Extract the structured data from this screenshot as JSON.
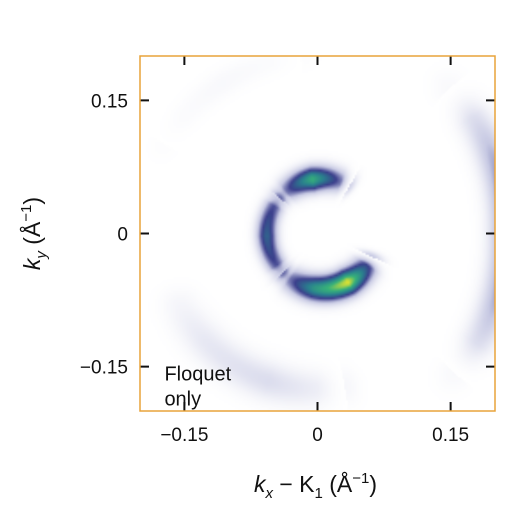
{
  "chart_data": {
    "type": "heatmap",
    "title": "",
    "xlabel": {
      "base": "k",
      "sub": "x",
      "rest": " − K",
      "sub2": "1",
      "unit": " (Å",
      "exp": "−1",
      "close": ")"
    },
    "ylabel": {
      "base": "k",
      "sub": "y",
      "unit": " (Å",
      "exp": "−1",
      "close": ")"
    },
    "xlim": [
      -0.2,
      0.2
    ],
    "ylim": [
      -0.2,
      0.2
    ],
    "xticks": [
      {
        "value": -0.15,
        "label": "−0.15"
      },
      {
        "value": 0,
        "label": "0"
      },
      {
        "value": 0.15,
        "label": "0.15"
      }
    ],
    "yticks": [
      {
        "value": 0.15,
        "label": "0.15"
      },
      {
        "value": 0,
        "label": "0"
      },
      {
        "value": -0.15,
        "label": "−0.15"
      }
    ],
    "annotation": {
      "lines": [
        "Floquet",
        "only"
      ],
      "x": -0.195,
      "y": -0.15
    },
    "colormap": [
      "#ffffff",
      "#c7c9e3",
      "#3b3f8c",
      "#2a7f8e",
      "#37b27a",
      "#f2e82a"
    ],
    "frame_color": "#e8a33a",
    "features": [
      {
        "name": "inner-upper-arc",
        "cx": 0.005,
        "cy": 0.0,
        "r": 0.062,
        "a0": 60,
        "a1": 140,
        "width": 0.013,
        "peak": 0.82,
        "amp": [
          0.2,
          0.95,
          0.2
        ]
      },
      {
        "name": "inner-lower-arc",
        "cx": 0.005,
        "cy": 0.0,
        "r": 0.062,
        "a0": 225,
        "a1": 335,
        "width": 0.014,
        "peak": 0.98,
        "amp": [
          0.18,
          0.7,
          1.0,
          0.2
        ]
      },
      {
        "name": "inner-left-arc",
        "cx": 0.005,
        "cy": 0.0,
        "r": 0.062,
        "a0": 140,
        "a1": 225,
        "width": 0.011,
        "peak": 0.6,
        "amp": [
          0.55,
          0.85,
          0.55
        ]
      },
      {
        "name": "outer-right-arc",
        "cx": -0.02,
        "cy": 0.0,
        "r": 0.235,
        "a0": -42,
        "a1": 44,
        "width": 0.018,
        "peak": 0.42,
        "amp": [
          0.05,
          0.55,
          0.95,
          0.55,
          0.05
        ]
      },
      {
        "name": "outer-bottom-left-arc",
        "cx": 0.0,
        "cy": 0.0,
        "r": 0.175,
        "a0": 195,
        "a1": 280,
        "width": 0.02,
        "peak": 0.14,
        "amp": [
          0.0,
          0.6,
          0.9,
          0.2
        ]
      },
      {
        "name": "outer-top-arc",
        "cx": 0.0,
        "cy": 0.0,
        "r": 0.2,
        "a0": 95,
        "a1": 150,
        "width": 0.014,
        "peak": 0.04,
        "amp": [
          0.2,
          0.6,
          0.2
        ]
      }
    ]
  }
}
